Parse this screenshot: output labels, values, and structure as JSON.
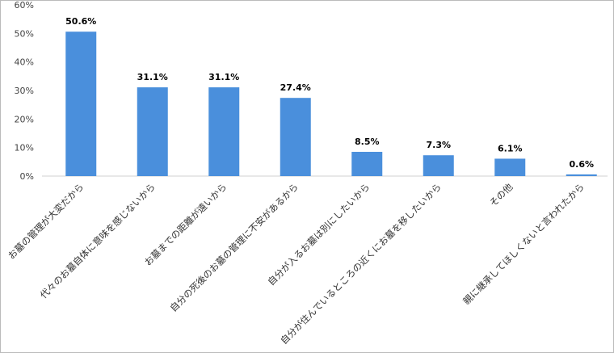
{
  "chart_data": {
    "type": "bar",
    "categories": [
      "お墓の管理が大変だから",
      "代々のお墓自体に意味を感じないから",
      "お墓までの距離が遠いから",
      "自分の死後のお墓の管理に不安があるから",
      "自分が入るお墓は別にしたいから",
      "自分が住んでいるところの近くにお墓を移したいから",
      "その他",
      "親に継承してほしくないと言われたから"
    ],
    "values": [
      50.6,
      31.1,
      31.1,
      27.4,
      8.5,
      7.3,
      6.1,
      0.6
    ],
    "value_labels": [
      "50.6%",
      "31.1%",
      "31.1%",
      "27.4%",
      "8.5%",
      "7.3%",
      "6.1%",
      "0.6%"
    ],
    "color": "#4a8fdc",
    "ylim": [
      0,
      60
    ],
    "yticks": [
      {
        "value": 0,
        "label": "0%"
      },
      {
        "value": 10,
        "label": "10%"
      },
      {
        "value": 20,
        "label": "20%"
      },
      {
        "value": 30,
        "label": "30%"
      },
      {
        "value": 40,
        "label": "40%"
      },
      {
        "value": 50,
        "label": "50%"
      },
      {
        "value": 60,
        "label": "60%"
      }
    ],
    "grid": false
  }
}
